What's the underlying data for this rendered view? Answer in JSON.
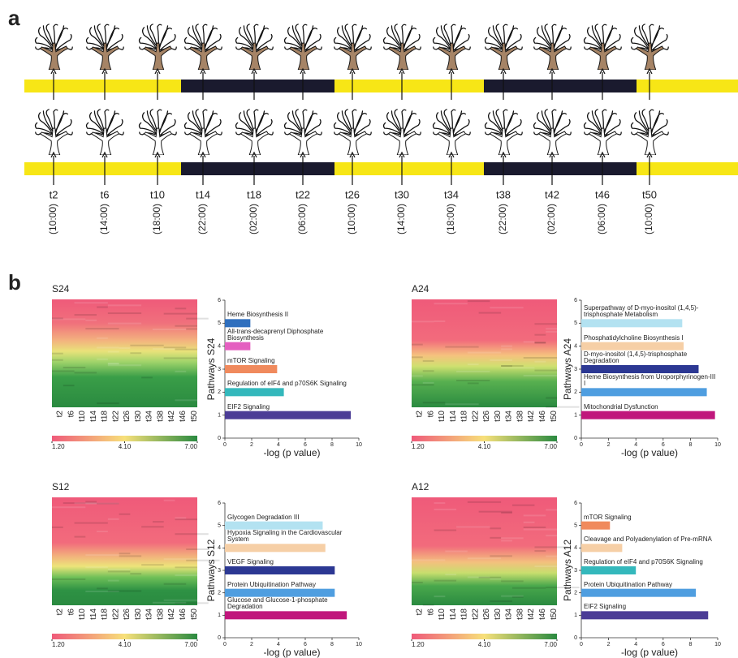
{
  "panel_a": {
    "label": "a",
    "timepoints": [
      "t2",
      "t6",
      "t10",
      "t14",
      "t18",
      "t22",
      "t26",
      "t30",
      "t34",
      "t38",
      "t42",
      "t46",
      "t50"
    ],
    "clock_times": [
      "(10:00)",
      "(14:00)",
      "(18:00)",
      "(22:00)",
      "(02:00)",
      "(06:00)",
      "(10:00)",
      "(14:00)",
      "(18:00)",
      "(22:00)",
      "(02:00)",
      "(06:00)",
      "(10:00)"
    ]
  },
  "panel_b": {
    "label": "b",
    "heatmaps": [
      {
        "title": "S24",
        "colorbar_lim": [
          1.2,
          7
        ],
        "colorbar_ticks": [
          {
            "value": 1.2,
            "label": "1.20"
          },
          {
            "value": 4.1,
            "label": "4.10"
          },
          {
            "value": 7,
            "label": "7.00"
          }
        ]
      },
      {
        "title": "A24",
        "colorbar_lim": [
          1.2,
          7
        ],
        "colorbar_ticks": [
          {
            "value": 1.2,
            "label": "1.20"
          },
          {
            "value": 4.1,
            "label": "4.10"
          },
          {
            "value": 7,
            "label": "7.00"
          }
        ]
      },
      {
        "title": "S12",
        "colorbar_lim": [
          1.2,
          7
        ],
        "colorbar_ticks": [
          {
            "value": 1.2,
            "label": "1.20"
          },
          {
            "value": 4.1,
            "label": "4.10"
          },
          {
            "value": 7,
            "label": "7.00"
          }
        ]
      },
      {
        "title": "A12",
        "colorbar_lim": [
          1.2,
          7
        ],
        "colorbar_ticks": [
          {
            "value": 1.2,
            "label": "1.20"
          },
          {
            "value": 4.1,
            "label": "4.10"
          },
          {
            "value": 7,
            "label": "7.00"
          }
        ]
      }
    ]
  },
  "chart_data": [
    {
      "type": "barh",
      "ylabel": "Pathways S24",
      "xlabel": "-log (p value)",
      "categories": [
        "EIF2 Signaling",
        "Regulation of eIF4 and p70S6K Signaling",
        "mTOR Signaling",
        "All-trans-decaprenyl Diphosphate Biosynthesis",
        "Heme Biosynthesis II"
      ],
      "positions": [
        1,
        2,
        3,
        4,
        5
      ],
      "values": [
        9.4,
        4.4,
        3.9,
        1.9,
        1.9
      ],
      "colors": [
        "#4b3c96",
        "#34b8bc",
        "#f08a5d",
        "#e45fc0",
        "#2f6fbe"
      ],
      "xlim": [
        0,
        10
      ],
      "xticks": [
        0,
        2,
        4,
        6,
        8,
        10
      ],
      "ylim": [
        0,
        6
      ],
      "yticks": [
        0,
        1,
        2,
        3,
        4,
        5,
        6
      ]
    },
    {
      "type": "barh",
      "ylabel": "Pathways A24",
      "xlabel": "-log (p value)",
      "categories": [
        "Mitochondrial Dysfunction",
        "Heme Biosynthesis from Uroporphyrinogen-III I",
        "D-myo-inositol (1,4,5)-trisphosphate Degradation",
        "Phosphatidylcholine Biosynthesis I",
        "Superpathway of D-myo-inositol (1,4,5)-trisphosphate Metabolism"
      ],
      "positions": [
        1,
        2,
        3,
        4,
        5
      ],
      "values": [
        9.8,
        9.2,
        8.6,
        7.5,
        7.4
      ],
      "colors": [
        "#c0177c",
        "#4f9ee0",
        "#2c3893",
        "#f6cfa6",
        "#b3e2f1"
      ],
      "xlim": [
        0,
        10
      ],
      "xticks": [
        0,
        2,
        4,
        6,
        8,
        10
      ],
      "ylim": [
        0,
        6
      ],
      "yticks": [
        0,
        1,
        2,
        3,
        4,
        5,
        6
      ]
    },
    {
      "type": "barh",
      "ylabel": "Pathways S12",
      "xlabel": "-log (p value)",
      "categories": [
        "Glucose and Glucose-1-phosphate Degradation",
        "Protein Ubiquitination Pathway",
        "VEGF Signaling",
        "Hypoxia Signaling in the Cardiovascular System",
        "Glycogen Degradation III"
      ],
      "positions": [
        1,
        2,
        3,
        4,
        5
      ],
      "values": [
        9.1,
        8.2,
        8.2,
        7.5,
        7.3
      ],
      "colors": [
        "#c0177c",
        "#4f9ee0",
        "#2c3893",
        "#f6cfa6",
        "#b3e2f1"
      ],
      "xlim": [
        0,
        10
      ],
      "xticks": [
        0,
        2,
        4,
        6,
        8,
        10
      ],
      "ylim": [
        0,
        6
      ],
      "yticks": [
        0,
        1,
        2,
        3,
        4,
        5,
        6
      ]
    },
    {
      "type": "barh",
      "ylabel": "Pathways A12",
      "xlabel": "-log (p value)",
      "categories": [
        "EIF2 Signaling",
        "Protein Ubiquitination Pathway",
        "Regulation of eIF4 and p70S6K Signaling",
        "Cleavage and Polyadenylation of Pre-mRNA",
        "mTOR Signaling"
      ],
      "positions": [
        1,
        2,
        3,
        4,
        5
      ],
      "values": [
        9.3,
        8.4,
        4.0,
        3.0,
        2.1
      ],
      "colors": [
        "#4b3c96",
        "#4f9ee0",
        "#34b8bc",
        "#f6cfa6",
        "#f08a5d"
      ],
      "xlim": [
        0,
        10
      ],
      "xticks": [
        0,
        2,
        4,
        6,
        8,
        10
      ],
      "ylim": [
        0,
        6
      ],
      "yticks": [
        0,
        1,
        2,
        3,
        4,
        5,
        6
      ]
    }
  ]
}
